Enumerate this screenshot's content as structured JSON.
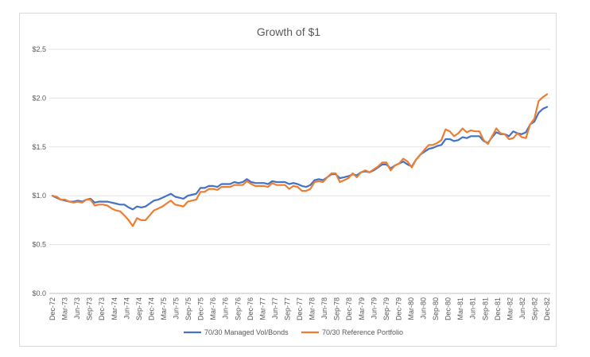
{
  "chart_data": {
    "type": "line",
    "title": "Growth of $1",
    "xlabel": "",
    "ylabel": "",
    "ylim": [
      0,
      2.5
    ],
    "y_ticks": [
      "$0.0",
      "$0.5",
      "$1.0",
      "$1.5",
      "$2.0",
      "$2.5"
    ],
    "grid": true,
    "legend_position": "bottom",
    "x_tick_labels": [
      "Dec-72",
      "Mar-73",
      "Jun-73",
      "Sep-73",
      "Dec-73",
      "Mar-74",
      "Jun-74",
      "Sep-74",
      "Dec-74",
      "Mar-75",
      "Jun-75",
      "Sep-75",
      "Dec-75",
      "Mar-76",
      "Jun-76",
      "Sep-76",
      "Dec-76",
      "Mar-77",
      "Jun-77",
      "Sep-77",
      "Dec-77",
      "Mar-78",
      "Jun-78",
      "Sep-78",
      "Dec-78",
      "Mar-79",
      "Jun-79",
      "Sep-79",
      "Dec-79",
      "Mar-80",
      "Jun-80",
      "Sep-80",
      "Dec-80",
      "Mar-81",
      "Jun-81",
      "Sep-81",
      "Dec-81",
      "Mar-82",
      "Jun-82",
      "Sep-82",
      "Dec-82"
    ],
    "series": [
      {
        "name": "70/30 Managed Vol/Bonds",
        "color": "#4472C4",
        "values": [
          1.0,
          0.98,
          0.96,
          0.95,
          0.94,
          0.94,
          0.95,
          0.94,
          0.96,
          0.97,
          0.93,
          0.94,
          0.94,
          0.94,
          0.93,
          0.92,
          0.91,
          0.91,
          0.88,
          0.86,
          0.89,
          0.88,
          0.89,
          0.92,
          0.95,
          0.96,
          0.98,
          1.0,
          1.02,
          0.99,
          0.98,
          0.97,
          1.0,
          1.01,
          1.02,
          1.08,
          1.08,
          1.1,
          1.1,
          1.09,
          1.12,
          1.12,
          1.12,
          1.14,
          1.13,
          1.14,
          1.17,
          1.14,
          1.13,
          1.13,
          1.13,
          1.12,
          1.15,
          1.14,
          1.14,
          1.14,
          1.12,
          1.13,
          1.12,
          1.1,
          1.09,
          1.11,
          1.16,
          1.17,
          1.16,
          1.19,
          1.22,
          1.22,
          1.18,
          1.19,
          1.2,
          1.22,
          1.21,
          1.24,
          1.25,
          1.24,
          1.26,
          1.29,
          1.32,
          1.32,
          1.28,
          1.31,
          1.33,
          1.35,
          1.32,
          1.3,
          1.37,
          1.42,
          1.45,
          1.48,
          1.49,
          1.51,
          1.52,
          1.58,
          1.58,
          1.56,
          1.57,
          1.6,
          1.59,
          1.61,
          1.61,
          1.61,
          1.56,
          1.54,
          1.6,
          1.65,
          1.63,
          1.63,
          1.61,
          1.66,
          1.64,
          1.63,
          1.65,
          1.73,
          1.76,
          1.85,
          1.89,
          1.91
        ]
      },
      {
        "name": "70/30 Reference Portfolio",
        "color": "#ED7D31",
        "values": [
          1.0,
          0.99,
          0.96,
          0.96,
          0.94,
          0.93,
          0.94,
          0.93,
          0.96,
          0.96,
          0.9,
          0.91,
          0.91,
          0.9,
          0.87,
          0.85,
          0.84,
          0.8,
          0.75,
          0.69,
          0.77,
          0.75,
          0.75,
          0.8,
          0.85,
          0.87,
          0.89,
          0.92,
          0.95,
          0.91,
          0.9,
          0.89,
          0.94,
          0.95,
          0.96,
          1.04,
          1.04,
          1.07,
          1.07,
          1.06,
          1.09,
          1.09,
          1.09,
          1.11,
          1.11,
          1.11,
          1.15,
          1.12,
          1.1,
          1.1,
          1.1,
          1.09,
          1.13,
          1.11,
          1.11,
          1.11,
          1.07,
          1.1,
          1.09,
          1.05,
          1.05,
          1.07,
          1.14,
          1.15,
          1.14,
          1.19,
          1.23,
          1.23,
          1.14,
          1.16,
          1.18,
          1.23,
          1.19,
          1.24,
          1.26,
          1.24,
          1.27,
          1.3,
          1.34,
          1.34,
          1.26,
          1.31,
          1.33,
          1.38,
          1.35,
          1.29,
          1.37,
          1.42,
          1.47,
          1.52,
          1.52,
          1.54,
          1.57,
          1.68,
          1.66,
          1.61,
          1.64,
          1.69,
          1.65,
          1.67,
          1.66,
          1.66,
          1.57,
          1.53,
          1.61,
          1.69,
          1.64,
          1.63,
          1.58,
          1.59,
          1.64,
          1.6,
          1.59,
          1.73,
          1.79,
          1.97,
          2.01,
          2.04
        ]
      }
    ]
  }
}
